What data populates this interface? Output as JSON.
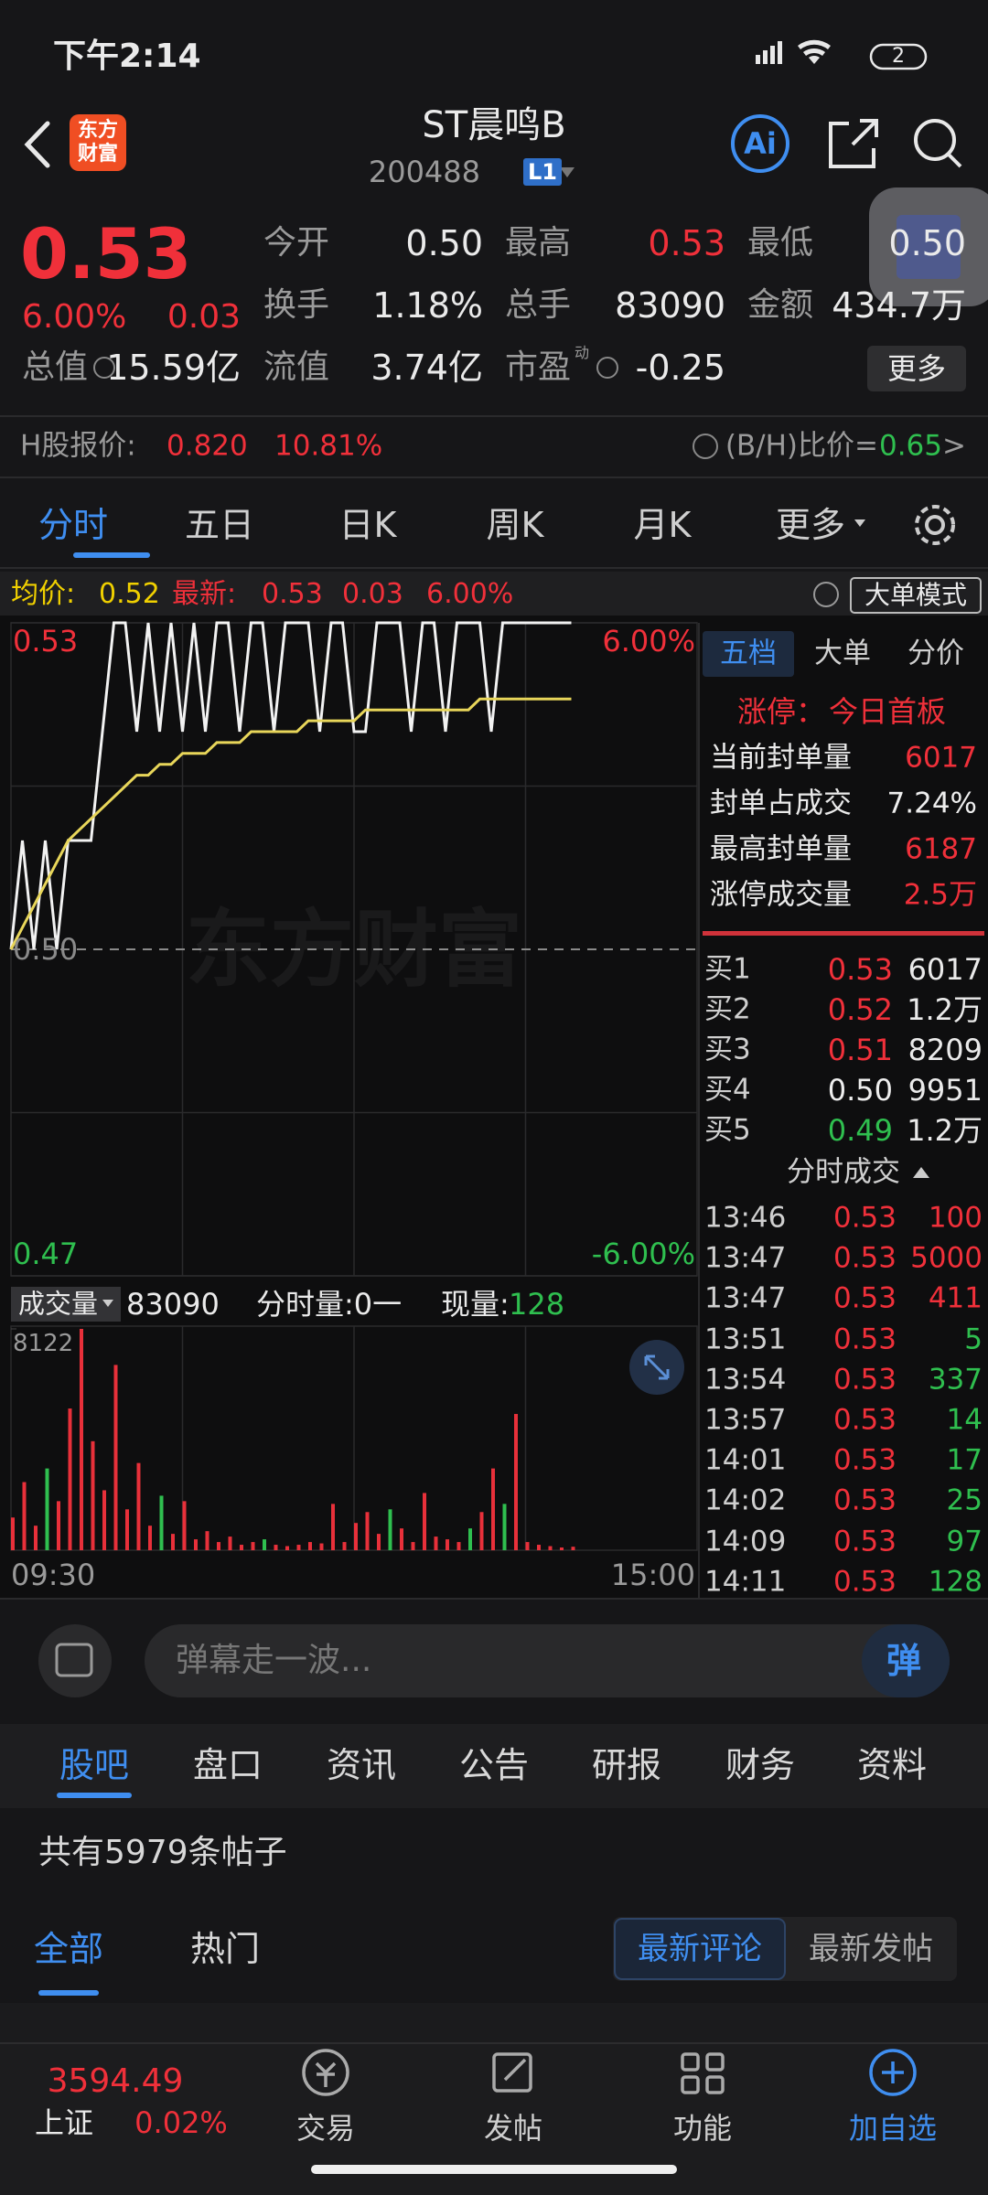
{
  "status_bar": {
    "time": "下午2:14",
    "battery": "2"
  },
  "header": {
    "logo": [
      "东方",
      "财富"
    ],
    "title": "ST晨鸣B",
    "code": "200488",
    "level": "L1"
  },
  "quote": {
    "price": "0.53",
    "change_pct": "6.00%",
    "change": "0.03",
    "stats": [
      {
        "label": "今开",
        "value": "0.50"
      },
      {
        "label": "最高",
        "value": "0.53"
      },
      {
        "label": "最低",
        "value": "0.50"
      },
      {
        "label": "换手",
        "value": "1.18%"
      },
      {
        "label": "总手",
        "value": "83090"
      },
      {
        "label": "金额",
        "value": "434.7万"
      },
      {
        "label": "总值",
        "value": "15.59亿"
      },
      {
        "label": "流值",
        "value": "3.74亿"
      },
      {
        "label": "市盈",
        "superscript": "动",
        "value": "-0.25"
      }
    ],
    "more": "更多"
  },
  "h_share": {
    "label": "H股报价:",
    "price": "0.820",
    "pct": "10.81%",
    "ratio_label": "(B/H)比价=",
    "ratio": "0.65",
    "arrow": ">"
  },
  "tabs": [
    "分时",
    "五日",
    "日K",
    "周K",
    "月K",
    "更多"
  ],
  "info_bar": {
    "avg_label": "均价:",
    "avg": "0.52",
    "latest_label": "最新:",
    "latest": "0.53",
    "change": "0.03",
    "pct": "6.00%",
    "mode_button": "大单模式"
  },
  "chart_data": [
    {
      "type": "line",
      "watermark": "东方财富",
      "ylim": [
        0.47,
        0.53
      ],
      "yticks": [
        0.53,
        {
          "value": 0.5,
          "label": "0.50"
        },
        0.47
      ],
      "ytick_colors": [
        "#f0303a",
        "#8a8a8a",
        "#2fbf4f"
      ],
      "y2lim": [
        -6,
        6
      ],
      "y2ticks": [
        {
          "value": 6,
          "label": "6.00%"
        },
        {
          "value": -6,
          "label": "-6.00%"
        }
      ],
      "y2tick_colors": [
        "#f0303a",
        "#2fbf4f"
      ],
      "series": [
        {
          "color": "#f2f2f2",
          "values": [
            0.5,
            0.51,
            0.5,
            0.51,
            0.5,
            0.51,
            0.51,
            0.51,
            0.52,
            0.53,
            0.53,
            0.52,
            0.53,
            0.52,
            0.53,
            0.52,
            0.53,
            0.52,
            0.53,
            0.53,
            0.52,
            0.53,
            0.53,
            0.52,
            0.53,
            0.53,
            0.53,
            0.52,
            0.53,
            0.53,
            0.52,
            0.52,
            0.53,
            0.53,
            0.53,
            0.52,
            0.53,
            0.53,
            0.52,
            0.53,
            0.53,
            0.53,
            0.52,
            0.53,
            0.53,
            0.53,
            0.53,
            0.53,
            0.53,
            0.53
          ]
        },
        {
          "color": "#e8d65a",
          "values": [
            0.5,
            0.502,
            0.504,
            0.506,
            0.508,
            0.51,
            0.511,
            0.512,
            0.513,
            0.514,
            0.515,
            0.516,
            0.516,
            0.517,
            0.517,
            0.518,
            0.518,
            0.518,
            0.519,
            0.519,
            0.519,
            0.52,
            0.52,
            0.52,
            0.52,
            0.52,
            0.521,
            0.521,
            0.521,
            0.521,
            0.521,
            0.522,
            0.522,
            0.522,
            0.522,
            0.522,
            0.522,
            0.522,
            0.522,
            0.522,
            0.522,
            0.523,
            0.523,
            0.523,
            0.523,
            0.523,
            0.523,
            0.523,
            0.523,
            0.523
          ]
        }
      ]
    },
    {
      "type": "bar",
      "label": "成交量",
      "total": "83090",
      "period_label": "分时量:0一",
      "current_label": "现量:",
      "current": "128",
      "ylim": [
        0,
        8122
      ],
      "yticks": [
        8122
      ],
      "xlabels": [
        "09:30",
        "15:00"
      ],
      "values": [
        1200,
        2500,
        900,
        3000,
        1800,
        5200,
        8122,
        4000,
        2200,
        6800,
        1500,
        3200,
        900,
        2000,
        600,
        1800,
        400,
        700,
        300,
        500,
        200,
        300,
        400,
        200,
        150,
        200,
        300,
        250,
        1700,
        300,
        1000,
        1400,
        600,
        1500,
        800,
        300,
        2100,
        500,
        400,
        300,
        800,
        1400,
        3000,
        1700,
        5000,
        300,
        200,
        150,
        100,
        128
      ],
      "colors": [
        "#e8303a",
        "#e8303a",
        "#e8303a",
        "#2fbf4f",
        "#e8303a",
        "#e8303a",
        "#e8303a",
        "#e8303a",
        "#e8303a",
        "#e8303a",
        "#e8303a",
        "#e8303a",
        "#e8303a",
        "#2fbf4f",
        "#e8303a",
        "#e8303a",
        "#e8303a",
        "#e8303a",
        "#e8303a",
        "#e8303a",
        "#e8303a",
        "#e8303a",
        "#2fbf4f",
        "#e8303a",
        "#e8303a",
        "#e8303a",
        "#e8303a",
        "#e8303a",
        "#e8303a",
        "#e8303a",
        "#e8303a",
        "#e8303a",
        "#e8303a",
        "#2fbf4f",
        "#e8303a",
        "#e8303a",
        "#e8303a",
        "#e8303a",
        "#e8303a",
        "#e8303a",
        "#2fbf4f",
        "#e8303a",
        "#e8303a",
        "#2fbf4f",
        "#e8303a",
        "#e8303a",
        "#e8303a",
        "#e8303a",
        "#e8303a",
        "#e8303a"
      ]
    }
  ],
  "side_panel": {
    "tabs": [
      "五档",
      "大单",
      "分价"
    ],
    "limit_label": "涨停：",
    "limit_text": "今日首板",
    "limit_stats": [
      [
        "当前封单量",
        "6017"
      ],
      [
        "封单占成交",
        "7.24%"
      ],
      [
        "最高封单量",
        "6187"
      ],
      [
        "涨停成交量",
        "2.5万"
      ]
    ],
    "limit_stat_colors": [
      "#f0303a",
      "#eeeeee",
      "#f0303a",
      "#f0303a"
    ],
    "bids": [
      [
        "买1",
        "0.53",
        "6017"
      ],
      [
        "买2",
        "0.52",
        "1.2万"
      ],
      [
        "买3",
        "0.51",
        "8209"
      ],
      [
        "买4",
        "0.50",
        "9951"
      ],
      [
        "买5",
        "0.49",
        "1.2万"
      ]
    ],
    "bid_price_colors": [
      "#f0303a",
      "#f0303a",
      "#f0303a",
      "#eeeeee",
      "#2fbf4f"
    ],
    "trades_title": "分时成交",
    "trades": [
      [
        "13:46",
        "0.53",
        "100"
      ],
      [
        "13:47",
        "0.53",
        "5000"
      ],
      [
        "13:47",
        "0.53",
        "411"
      ],
      [
        "13:51",
        "0.53",
        "5"
      ],
      [
        "13:54",
        "0.53",
        "337"
      ],
      [
        "13:57",
        "0.53",
        "14"
      ],
      [
        "14:01",
        "0.53",
        "17"
      ],
      [
        "14:02",
        "0.53",
        "25"
      ],
      [
        "14:09",
        "0.53",
        "97"
      ],
      [
        "14:11",
        "0.53",
        "128"
      ]
    ],
    "trade_volume_colors": [
      "#f0303a",
      "#f0303a",
      "#f0303a",
      "#2fbf4f",
      "#2fbf4f",
      "#2fbf4f",
      "#2fbf4f",
      "#2fbf4f",
      "#2fbf4f",
      "#2fbf4f"
    ]
  },
  "comment_bar": {
    "placeholder": "弹幕走一波...",
    "button": "弹"
  },
  "forum": {
    "tabs": [
      "股吧",
      "盘口",
      "资讯",
      "公告",
      "研报",
      "财务",
      "资料"
    ],
    "count": "共有5979条帖子",
    "filters": [
      "全部",
      "热门"
    ],
    "sort": [
      "最新评论",
      "最新发帖"
    ]
  },
  "bottom_nav": {
    "index_value": "3594.49",
    "index_name": "上证",
    "index_pct": "0.02%",
    "items": [
      "交易",
      "发帖",
      "功能",
      "加自选"
    ]
  }
}
